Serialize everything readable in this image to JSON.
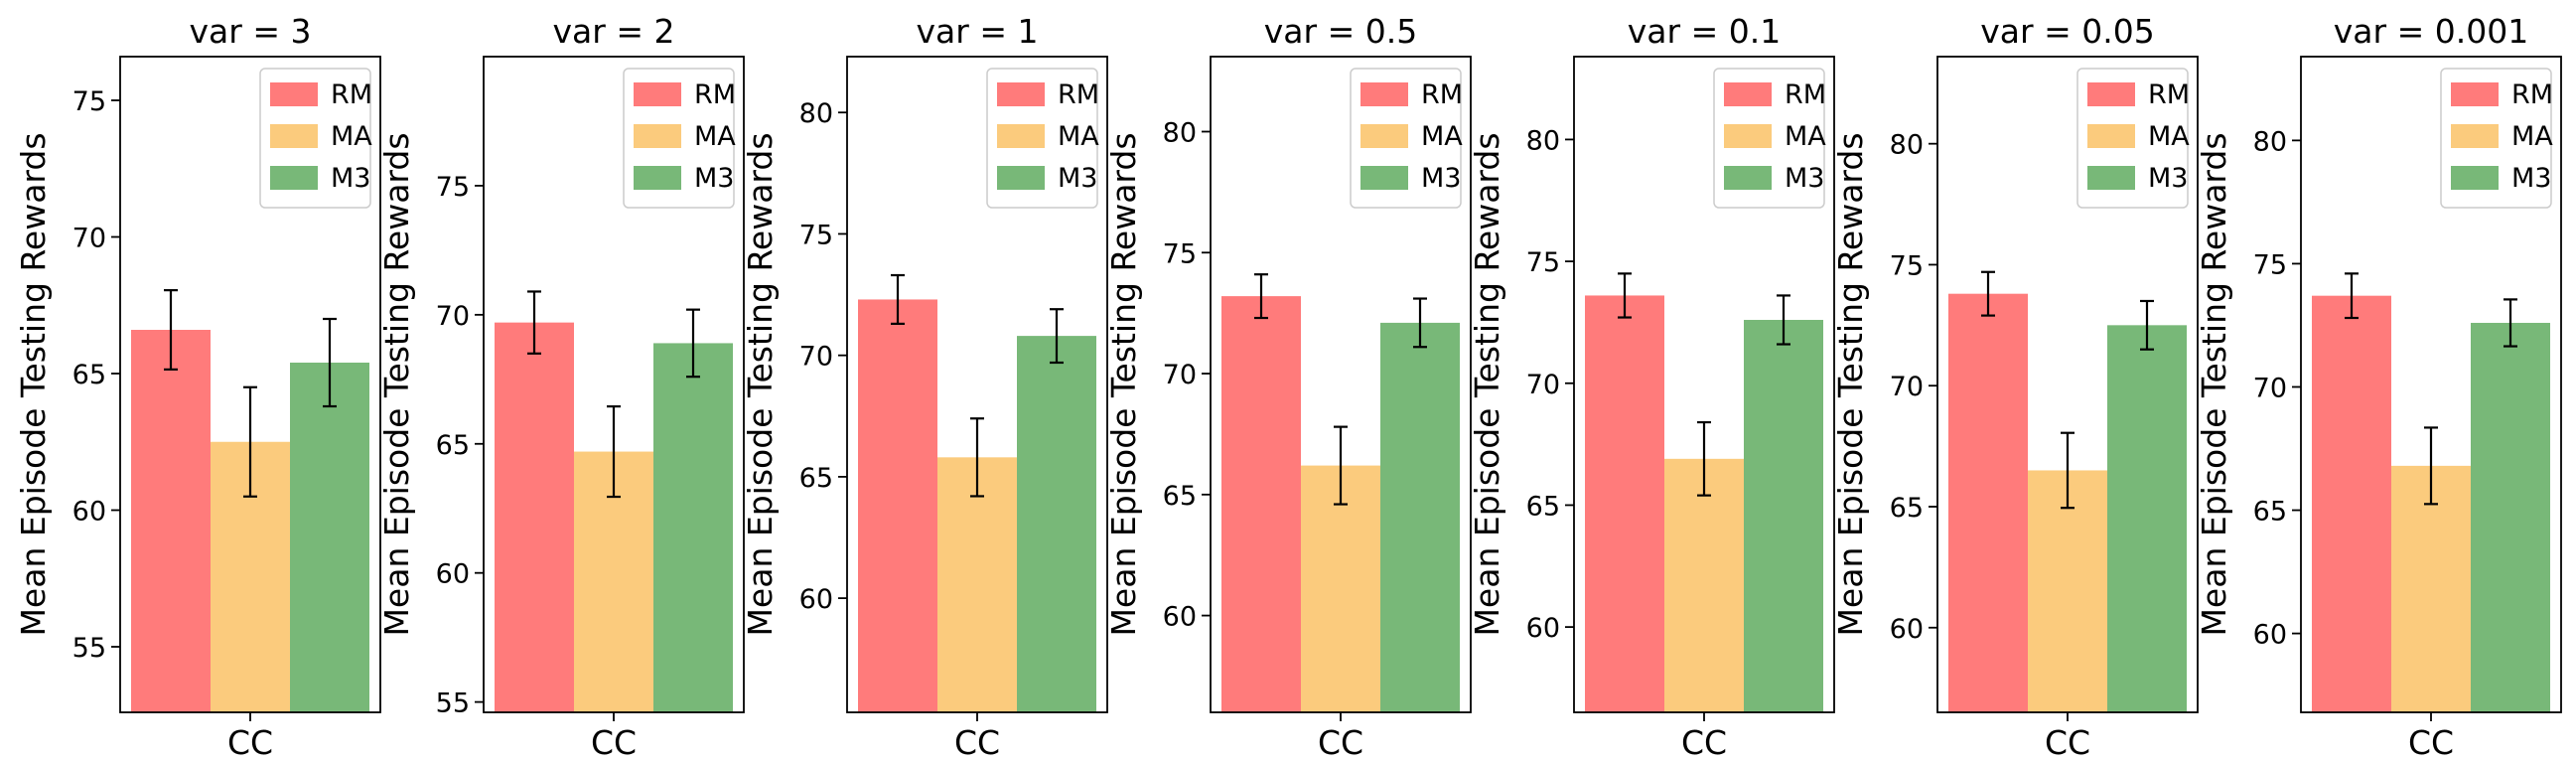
{
  "legend": [
    {
      "name": "RM",
      "color": "#FF7B7B"
    },
    {
      "name": "MA",
      "color": "#FBCB7D"
    },
    {
      "name": "M3",
      "color": "#78B878"
    }
  ],
  "chart_data": [
    {
      "type": "bar",
      "title": "var = 3",
      "xlabel": "",
      "ylabel": "Mean Episode Testing Rewards",
      "categories": [
        "CC"
      ],
      "ylim": [
        52.6,
        76.6
      ],
      "yticks": [
        55,
        60,
        65,
        70,
        75
      ],
      "series": [
        {
          "name": "RM",
          "values": [
            66.6
          ],
          "err": [
            1.45
          ]
        },
        {
          "name": "MA",
          "values": [
            62.5
          ],
          "err": [
            2.0
          ]
        },
        {
          "name": "M3",
          "values": [
            65.4
          ],
          "err": [
            1.6
          ]
        }
      ],
      "legend_position": "top-right",
      "grid": false
    },
    {
      "type": "bar",
      "title": "var = 2",
      "xlabel": "",
      "ylabel": "Mean Episode Testing Rewards",
      "categories": [
        "CC"
      ],
      "ylim": [
        54.6,
        80.0
      ],
      "yticks": [
        55,
        60,
        65,
        70,
        75
      ],
      "series": [
        {
          "name": "RM",
          "values": [
            69.7
          ],
          "err": [
            1.2
          ]
        },
        {
          "name": "MA",
          "values": [
            64.7
          ],
          "err": [
            1.75
          ]
        },
        {
          "name": "M3",
          "values": [
            68.9
          ],
          "err": [
            1.3
          ]
        }
      ],
      "legend_position": "top-right",
      "grid": false
    },
    {
      "type": "bar",
      "title": "var = 1",
      "xlabel": "",
      "ylabel": "Mean Episode Testing Rewards",
      "categories": [
        "CC"
      ],
      "ylim": [
        55.3,
        82.3
      ],
      "yticks": [
        60,
        65,
        70,
        75,
        80
      ],
      "series": [
        {
          "name": "RM",
          "values": [
            72.3
          ],
          "err": [
            1.0
          ]
        },
        {
          "name": "MA",
          "values": [
            65.8
          ],
          "err": [
            1.6
          ]
        },
        {
          "name": "M3",
          "values": [
            70.8
          ],
          "err": [
            1.1
          ]
        }
      ],
      "legend_position": "top-right",
      "grid": false
    },
    {
      "type": "bar",
      "title": "var = 0.5",
      "xlabel": "",
      "ylabel": "Mean Episode Testing Rewards",
      "categories": [
        "CC"
      ],
      "ylim": [
        56.0,
        83.1
      ],
      "yticks": [
        60,
        65,
        70,
        75,
        80
      ],
      "series": [
        {
          "name": "RM",
          "values": [
            73.2
          ],
          "err": [
            0.9
          ]
        },
        {
          "name": "MA",
          "values": [
            66.2
          ],
          "err": [
            1.6
          ]
        },
        {
          "name": "M3",
          "values": [
            72.1
          ],
          "err": [
            1.0
          ]
        }
      ],
      "legend_position": "top-right",
      "grid": false
    },
    {
      "type": "bar",
      "title": "var = 0.1",
      "xlabel": "",
      "ylabel": "Mean Episode Testing Rewards",
      "categories": [
        "CC"
      ],
      "ylim": [
        56.5,
        83.4
      ],
      "yticks": [
        60,
        65,
        70,
        75,
        80
      ],
      "series": [
        {
          "name": "RM",
          "values": [
            73.6
          ],
          "err": [
            0.9
          ]
        },
        {
          "name": "MA",
          "values": [
            66.9
          ],
          "err": [
            1.5
          ]
        },
        {
          "name": "M3",
          "values": [
            72.6
          ],
          "err": [
            1.0
          ]
        }
      ],
      "legend_position": "top-right",
      "grid": false
    },
    {
      "type": "bar",
      "title": "var = 0.05",
      "xlabel": "",
      "ylabel": "Mean Episode Testing Rewards",
      "categories": [
        "CC"
      ],
      "ylim": [
        56.5,
        83.6
      ],
      "yticks": [
        60,
        65,
        70,
        75,
        80
      ],
      "series": [
        {
          "name": "RM",
          "values": [
            73.8
          ],
          "err": [
            0.9
          ]
        },
        {
          "name": "MA",
          "values": [
            66.5
          ],
          "err": [
            1.55
          ]
        },
        {
          "name": "M3",
          "values": [
            72.5
          ],
          "err": [
            1.0
          ]
        }
      ],
      "legend_position": "top-right",
      "grid": false
    },
    {
      "type": "bar",
      "title": "var = 0.001",
      "xlabel": "",
      "ylabel": "Mean Episode Testing Rewards",
      "categories": [
        "CC"
      ],
      "ylim": [
        56.8,
        83.4
      ],
      "yticks": [
        60,
        65,
        70,
        75,
        80
      ],
      "series": [
        {
          "name": "RM",
          "values": [
            73.7
          ],
          "err": [
            0.9
          ]
        },
        {
          "name": "MA",
          "values": [
            66.8
          ],
          "err": [
            1.55
          ]
        },
        {
          "name": "M3",
          "values": [
            72.6
          ],
          "err": [
            0.95
          ]
        }
      ],
      "legend_position": "top-right",
      "grid": false
    }
  ]
}
